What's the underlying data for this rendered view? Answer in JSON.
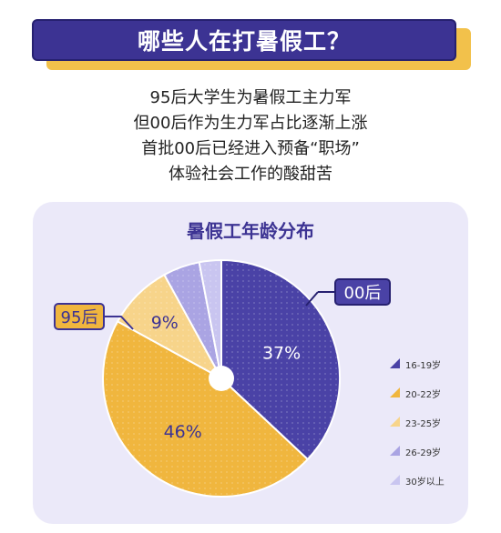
{
  "header": {
    "title": "哪些人在打暑假工？"
  },
  "intro": {
    "lines": [
      "95后大学生为暑假工主力军",
      "但00后作为生力军占比逐渐上涨",
      "首批00后已经进入预备“职场”",
      "体验社会工作的酸甜苦"
    ]
  },
  "callouts": {
    "group_00": "00后",
    "group_95": "95后"
  },
  "chart_data": {
    "type": "pie",
    "title": "暑假工年龄分布",
    "categories": [
      "16-19岁",
      "20-22岁",
      "23-25岁",
      "26-29岁",
      "30岁以上"
    ],
    "values": [
      37,
      46,
      9,
      5,
      3
    ],
    "value_labels": [
      "37%",
      "46%",
      "9%",
      "",
      ""
    ],
    "colors": [
      "#4a42a6",
      "#f0b63e",
      "#f7d48a",
      "#aaa4e3",
      "#c9c5f0"
    ],
    "legend_position": "right",
    "donut_hole": true
  }
}
